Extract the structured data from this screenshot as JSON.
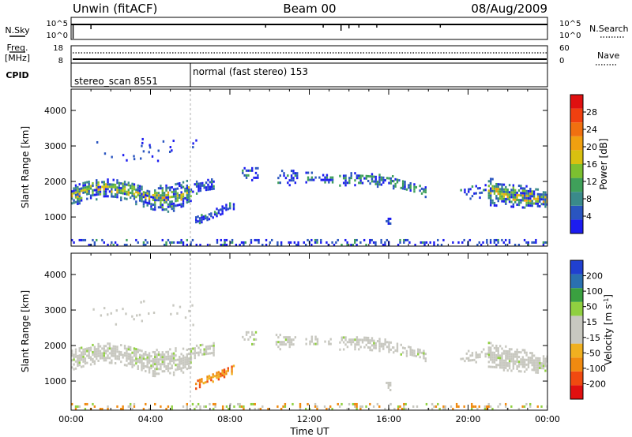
{
  "header": {
    "left_title": "Unwin (fitACF)",
    "center_title": "Beam 00",
    "right_title": "08/Aug/2009"
  },
  "top_panels": {
    "nsky": {
      "label": "N.Sky",
      "left_ticks": [
        "10^5",
        "10^0"
      ],
      "right_label": "N.Search",
      "right_ticks": [
        "10^5",
        "10^0"
      ]
    },
    "freq": {
      "label_line1": "Freq.",
      "label_line2": "[MHz]",
      "left_ticks": [
        "18",
        "8"
      ],
      "right_label": "Nave",
      "right_ticks": [
        "60",
        "0"
      ]
    },
    "cpid": {
      "label": "CPID",
      "segments": [
        {
          "label": "stereo_scan 8551",
          "start_hour": 0,
          "end_hour": 6.0
        },
        {
          "label": "normal (fast stereo) 153",
          "start_hour": 6.0,
          "end_hour": 24
        }
      ]
    }
  },
  "chart_data": [
    {
      "type": "heatmap",
      "name": "power-panel",
      "quantity": "Power",
      "ylabel": "Slant Range [km]",
      "xlim_hours": [
        0,
        24
      ],
      "ylim": [
        180,
        4600
      ],
      "yticks": [
        1000,
        2000,
        3000,
        4000
      ],
      "colorbar": {
        "label": "Power [dB]",
        "ticks": [
          "4",
          "8",
          "12",
          "16",
          "20",
          "24",
          "28"
        ],
        "colors": [
          "#1c1cf0",
          "#2a55c0",
          "#3a8a8a",
          "#3fa05a",
          "#7cc030",
          "#d8c010",
          "#f0a010",
          "#f07010",
          "#f04010",
          "#e01010"
        ]
      },
      "echo_regions": [
        {
          "hours": [
            0.0,
            6.0
          ],
          "range_km": [
            1300,
            2100
          ],
          "dominant": "green/yellow (8-20 dB)"
        },
        {
          "hours": [
            6.0,
            7.0
          ],
          "range_km": [
            1500,
            2000
          ],
          "dominant": "blue"
        },
        {
          "hours": [
            6.2,
            8.2
          ],
          "range_km": [
            800,
            1400
          ],
          "dominant": "blue"
        },
        {
          "hours": [
            8.5,
            11.0
          ],
          "range_km": [
            1800,
            2500
          ],
          "dominant": "blue"
        },
        {
          "hours": [
            11.5,
            16.0
          ],
          "range_km": [
            1800,
            2300
          ],
          "dominant": "blue/green"
        },
        {
          "hours": [
            16.0,
            18.0
          ],
          "range_km": [
            1700,
            2200
          ],
          "dominant": "blue/green"
        },
        {
          "hours": [
            15.8,
            16.1
          ],
          "range_km": [
            800,
            1100
          ],
          "dominant": "blue"
        },
        {
          "hours": [
            19.5,
            24.0
          ],
          "range_km": [
            1300,
            2400
          ],
          "dominant": "green/yellow (8-20 dB)"
        },
        {
          "hours": [
            0.0,
            24.0
          ],
          "range_km": [
            180,
            500
          ],
          "dominant": "blue"
        }
      ]
    },
    {
      "type": "heatmap",
      "name": "velocity-panel",
      "quantity": "Velocity",
      "ylabel": "Slant Range [km]",
      "xlabel": "Time UT",
      "xlim_hours": [
        0,
        24
      ],
      "ylim": [
        180,
        4600
      ],
      "yticks": [
        1000,
        2000,
        3000,
        4000
      ],
      "xticks": [
        "00:00",
        "04:00",
        "08:00",
        "12:00",
        "16:00",
        "20:00",
        "00:00"
      ],
      "colorbar": {
        "label": "Velocity [m s",
        "label_sup": "-1",
        "label_end": "]",
        "ticks": [
          "-200",
          "-100",
          "-50",
          "-15",
          "15",
          "50",
          "100",
          "200"
        ],
        "colors": [
          "#e01010",
          "#f04a10",
          "#f08a10",
          "#f0b020",
          "#c8c8c0",
          "#c8c8c0",
          "#90d040",
          "#3aa040",
          "#2a70b0",
          "#2040d0"
        ]
      },
      "echo_regions": [
        {
          "hours": [
            0.0,
            6.0
          ],
          "range_km": [
            1300,
            2100
          ],
          "dominant": "grey (low velocity)"
        },
        {
          "hours": [
            6.2,
            8.2
          ],
          "range_km": [
            800,
            1400
          ],
          "dominant": "orange (-15 to -50 m/s)"
        },
        {
          "hours": [
            8.5,
            18.0
          ],
          "range_km": [
            1700,
            2500
          ],
          "dominant": "grey"
        },
        {
          "hours": [
            19.5,
            24.0
          ],
          "range_km": [
            1300,
            2400
          ],
          "dominant": "grey/green"
        },
        {
          "hours": [
            0.0,
            24.0
          ],
          "range_km": [
            180,
            500
          ],
          "dominant": "orange/green"
        }
      ]
    }
  ]
}
